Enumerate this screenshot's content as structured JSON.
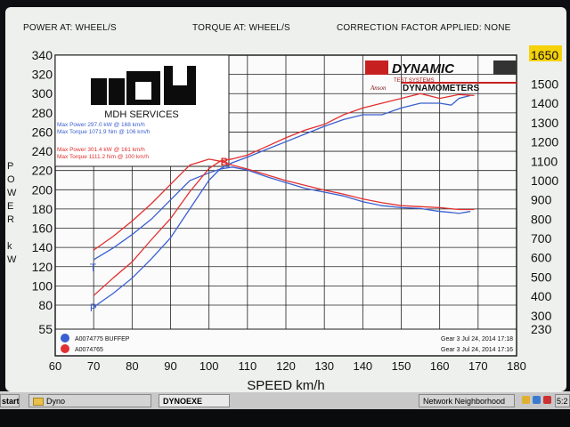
{
  "header": {
    "power_label": "POWER AT: WHEEL/S",
    "torque_label": "TORQUE AT: WHEEL/S",
    "correction_label": "CORRECTION FACTOR APPLIED: NONE"
  },
  "logo": {
    "left_text": "MDH SERVICES",
    "brand_top": "DYNAMIC",
    "brand_sub": "TEST SYSTEMS",
    "brand_bottom": "DYNAMOMETERS",
    "script_word": "Anson"
  },
  "left_axis_letters": [
    "P",
    "O",
    "W",
    "E",
    "R",
    "",
    "k",
    "W"
  ],
  "taskbar": {
    "start": "start",
    "dyno": "Dyno",
    "dynoexe": "DYNOEXE",
    "network": "Network Neighborhood",
    "clock": "5:2"
  },
  "chart_data": {
    "type": "line",
    "xlabel": "SPEED km/h",
    "xlim": [
      60,
      180
    ],
    "xticks": [
      60,
      70,
      80,
      90,
      100,
      110,
      120,
      130,
      140,
      150,
      160,
      170,
      180
    ],
    "ylim_left": [
      55,
      340
    ],
    "yticks_left": [
      55,
      80,
      100,
      120,
      140,
      160,
      180,
      200,
      220,
      240,
      260,
      280,
      300,
      320,
      340
    ],
    "ylim_right": [
      230,
      1650
    ],
    "yticks_right": [
      230,
      300,
      400,
      500,
      600,
      700,
      800,
      900,
      1000,
      1100,
      1200,
      1300,
      1400,
      1500,
      1650
    ],
    "grid": true,
    "colors": {
      "blue": "#3a5fd0",
      "red": "#e23030"
    },
    "annotations": {
      "blue": [
        "Max Power 297.0 kW @ 168 km/h",
        "Max Torque 1071.9 Nm @ 106 km/h"
      ],
      "red": [
        "Max Power 301.4 kW @ 161 km/h",
        "Max Torque 1111.2 Nm @ 100 km/h"
      ]
    },
    "curve_markers": {
      "torque": "T",
      "power": "P",
      "crossover": "B"
    },
    "series": [
      {
        "name": "A0074775 BUFFEP",
        "color": "blue",
        "info": "Gear 3 Jul 24, 2014 17:18",
        "power": {
          "axis": "left",
          "x": [
            70,
            75,
            80,
            85,
            90,
            95,
            100,
            103,
            106,
            110,
            115,
            120,
            125,
            130,
            135,
            140,
            145,
            150,
            155,
            160,
            163,
            165,
            168
          ],
          "y": [
            78,
            92,
            108,
            128,
            150,
            180,
            210,
            222,
            228,
            234,
            242,
            250,
            258,
            266,
            273,
            278,
            278,
            285,
            290,
            290,
            288,
            295,
            298
          ]
        },
        "torque": {
          "axis": "right",
          "x": [
            70,
            75,
            80,
            85,
            90,
            95,
            100,
            103,
            106,
            110,
            115,
            120,
            125,
            130,
            135,
            140,
            145,
            150,
            155,
            160,
            163,
            165,
            168
          ],
          "y": [
            590,
            650,
            720,
            800,
            900,
            1000,
            1040,
            1060,
            1070,
            1055,
            1020,
            990,
            960,
            940,
            920,
            890,
            870,
            860,
            855,
            840,
            835,
            830,
            840
          ]
        }
      },
      {
        "name": "A0074765",
        "color": "red",
        "info": "Gear 3 Jul 24, 2014 17:16",
        "power": {
          "axis": "left",
          "x": [
            70,
            75,
            80,
            85,
            90,
            95,
            100,
            103,
            106,
            110,
            115,
            120,
            125,
            130,
            135,
            140,
            145,
            150,
            155,
            160,
            165,
            169
          ],
          "y": [
            90,
            108,
            125,
            148,
            170,
            198,
            222,
            230,
            232,
            236,
            245,
            254,
            262,
            268,
            278,
            285,
            290,
            295,
            300,
            295,
            299,
            298
          ]
        },
        "torque": {
          "axis": "right",
          "x": [
            70,
            75,
            80,
            85,
            90,
            95,
            100,
            103,
            106,
            110,
            115,
            120,
            125,
            130,
            135,
            140,
            145,
            150,
            155,
            160,
            165,
            169
          ],
          "y": [
            640,
            710,
            790,
            880,
            980,
            1080,
            1111,
            1100,
            1080,
            1060,
            1030,
            1000,
            975,
            950,
            930,
            905,
            885,
            870,
            865,
            860,
            850,
            850
          ]
        }
      }
    ]
  }
}
